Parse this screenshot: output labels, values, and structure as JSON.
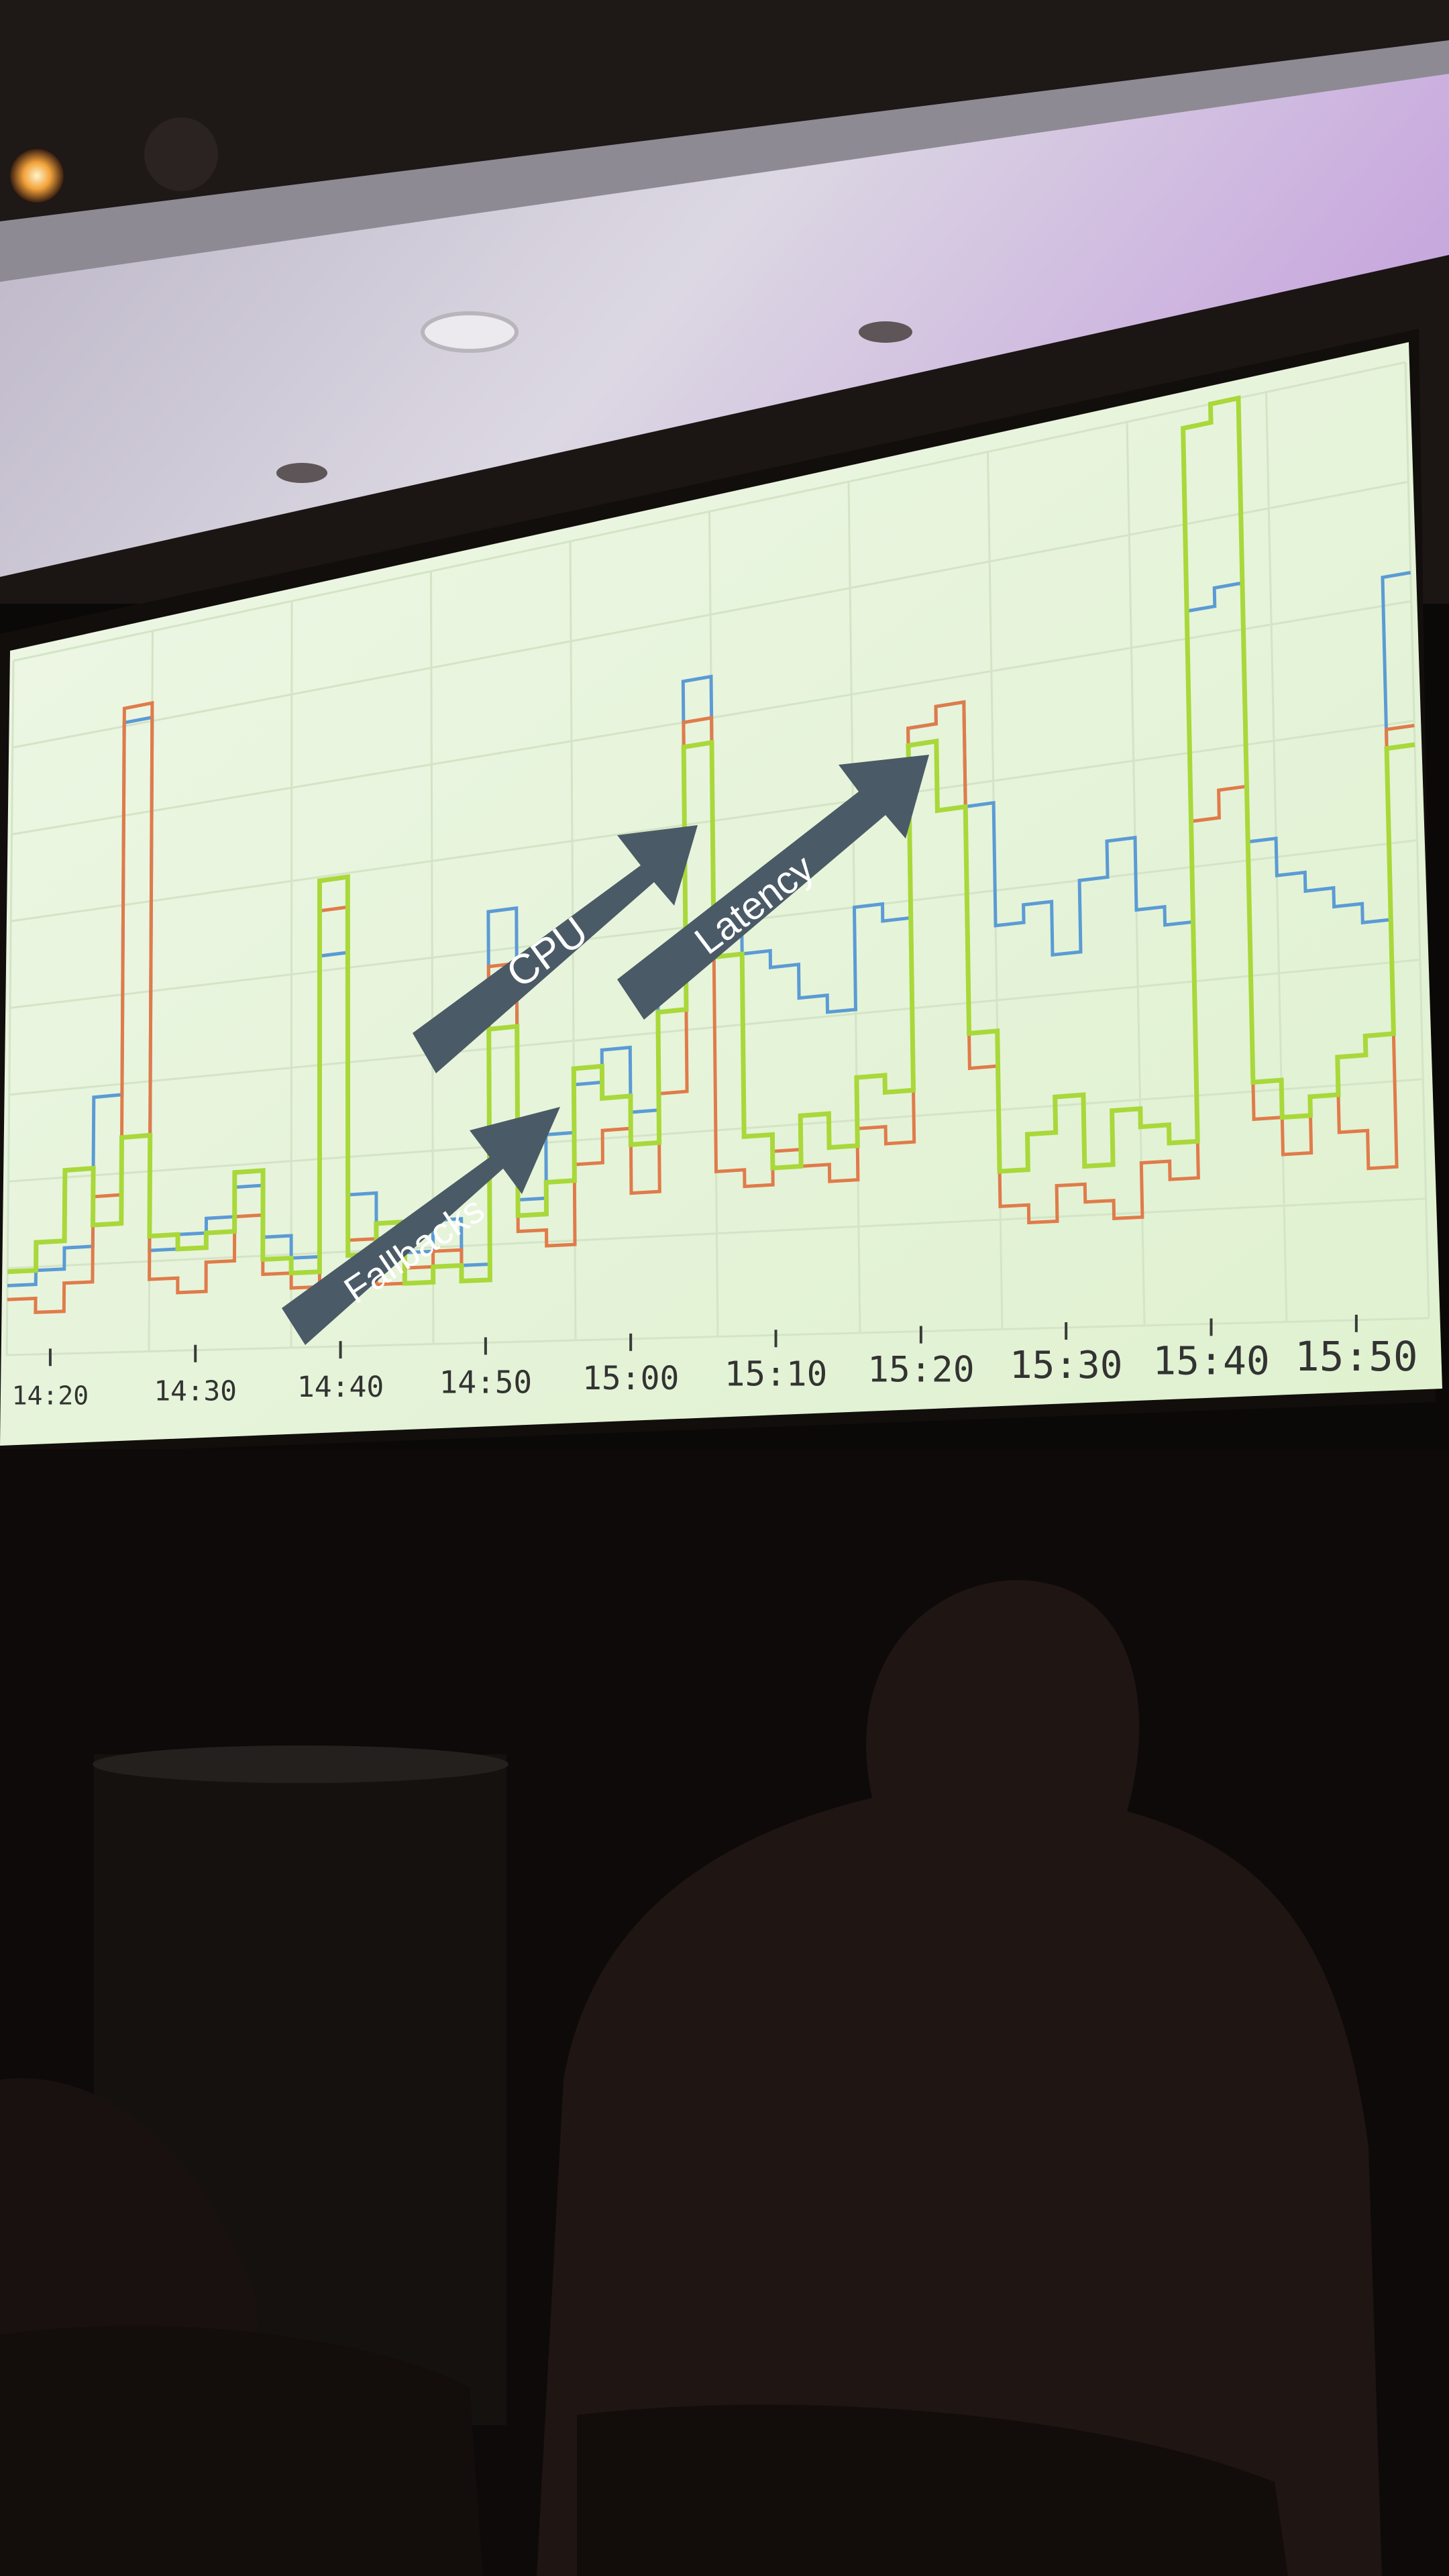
{
  "scene": {
    "description_type": "photo of a conference projection screen showing a time-series chart, audience in dark foreground",
    "colors": {
      "ceiling": "#d9d6df",
      "ceiling_shadow": "#1b1514",
      "screen_bg": "#e8f5dc",
      "room_dark": "#0b0908",
      "audience": "#1f1512"
    }
  },
  "chart_data": {
    "type": "line",
    "style": "step",
    "x_ticks": [
      "14:20",
      "14:30",
      "14:40",
      "14:50",
      "15:00",
      "15:10",
      "15:20",
      "15:30",
      "15:40",
      "15:50"
    ],
    "xlabel": "",
    "ylabel": "",
    "grid": true,
    "legend": "none",
    "x_range": [
      0,
      100
    ],
    "y_range": [
      0,
      100
    ],
    "series": [
      {
        "color": "#5b9bd5",
        "x": [
          0,
          2,
          4,
          6,
          8,
          10,
          12,
          14,
          16,
          18,
          20,
          22,
          24,
          26,
          28,
          30,
          32,
          34,
          36,
          38,
          40,
          42,
          44,
          46,
          48,
          50,
          52,
          54,
          56,
          58,
          60,
          62,
          64,
          66,
          68,
          70,
          72,
          74,
          76,
          78,
          80,
          82,
          84,
          86,
          88,
          90,
          92,
          94,
          96,
          98
        ],
        "y": [
          10,
          12,
          15,
          36,
          88,
          14,
          16,
          18,
          22,
          15,
          12,
          52,
          20,
          14,
          12,
          16,
          10,
          55,
          18,
          26,
          32,
          36,
          28,
          45,
          80,
          52,
          46,
          44,
          40,
          38,
          50,
          48,
          70,
          72,
          60,
          46,
          48,
          42,
          50,
          54,
          46,
          44,
          78,
          80,
          52,
          48,
          46,
          44,
          42,
          78
        ]
      },
      {
        "color": "#e07b4a",
        "x": [
          0,
          2,
          4,
          6,
          8,
          10,
          12,
          14,
          16,
          18,
          20,
          22,
          24,
          26,
          28,
          30,
          32,
          34,
          36,
          38,
          40,
          42,
          44,
          46,
          48,
          50,
          52,
          54,
          56,
          58,
          60,
          62,
          64,
          66,
          68,
          70,
          72,
          74,
          76,
          78,
          80,
          82,
          84,
          86,
          88,
          90,
          92,
          94,
          96,
          98
        ],
        "y": [
          8,
          6,
          10,
          22,
          90,
          10,
          8,
          12,
          18,
          10,
          8,
          58,
          14,
          8,
          10,
          12,
          8,
          48,
          14,
          12,
          22,
          26,
          18,
          30,
          75,
          20,
          18,
          22,
          20,
          18,
          24,
          22,
          70,
          72,
          30,
          14,
          12,
          16,
          14,
          12,
          18,
          16,
          55,
          58,
          22,
          18,
          24,
          20,
          16,
          62
        ]
      },
      {
        "color": "#a9d83a",
        "x": [
          0,
          2,
          4,
          6,
          8,
          10,
          12,
          14,
          16,
          18,
          20,
          22,
          24,
          26,
          28,
          30,
          32,
          34,
          36,
          38,
          40,
          42,
          44,
          46,
          48,
          50,
          52,
          54,
          56,
          58,
          60,
          62,
          64,
          66,
          68,
          70,
          72,
          74,
          76,
          78,
          80,
          82,
          84,
          86,
          88,
          90,
          92,
          94,
          96,
          98
        ],
        "y": [
          12,
          16,
          26,
          18,
          30,
          16,
          14,
          16,
          24,
          12,
          10,
          62,
          12,
          16,
          8,
          10,
          8,
          40,
          16,
          20,
          34,
          30,
          24,
          40,
          72,
          46,
          24,
          20,
          26,
          22,
          30,
          28,
          68,
          60,
          34,
          18,
          22,
          26,
          18,
          24,
          22,
          20,
          98,
          100,
          26,
          22,
          24,
          28,
          30,
          60
        ]
      }
    ],
    "annotations": [
      {
        "text": "Fallbacks"
      },
      {
        "text": "CPU"
      },
      {
        "text": "Latency"
      }
    ]
  }
}
